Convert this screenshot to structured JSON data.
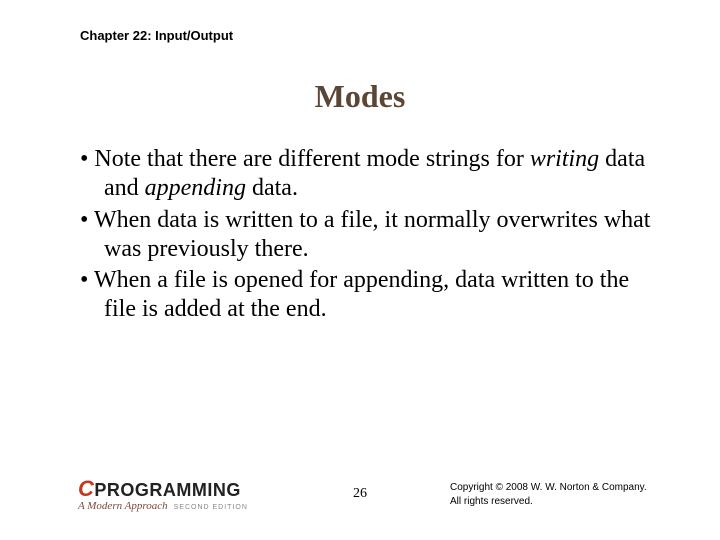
{
  "header": {
    "chapter": "Chapter 22: Input/Output"
  },
  "title": "Modes",
  "bullets": [
    {
      "pre": "Note that there are different mode strings for ",
      "em1": "writing",
      "mid": " data and ",
      "em2": "appending",
      "post": " data."
    },
    {
      "pre": "When data is written to a file, it normally overwrites what was previously there.",
      "em1": "",
      "mid": "",
      "em2": "",
      "post": ""
    },
    {
      "pre": "When a file is opened for appending, data written to the file is added at the end.",
      "em1": "",
      "mid": "",
      "em2": "",
      "post": ""
    }
  ],
  "footer": {
    "logo_c": "C",
    "logo_rest": "PROGRAMMING",
    "logo_sub": "A Modern Approach",
    "logo_edition": "SECOND EDITION",
    "page": "26",
    "copyright_line1": "Copyright © 2008 W. W. Norton & Company.",
    "copyright_line2": "All rights reserved."
  },
  "colors": {
    "title": "#5b4636",
    "logo_c": "#c43a1d",
    "text": "#000000",
    "background": "#ffffff"
  },
  "typography": {
    "header_fontsize": 13,
    "title_fontsize": 32,
    "body_fontsize": 24,
    "page_fontsize": 14,
    "copyright_fontsize": 10
  }
}
